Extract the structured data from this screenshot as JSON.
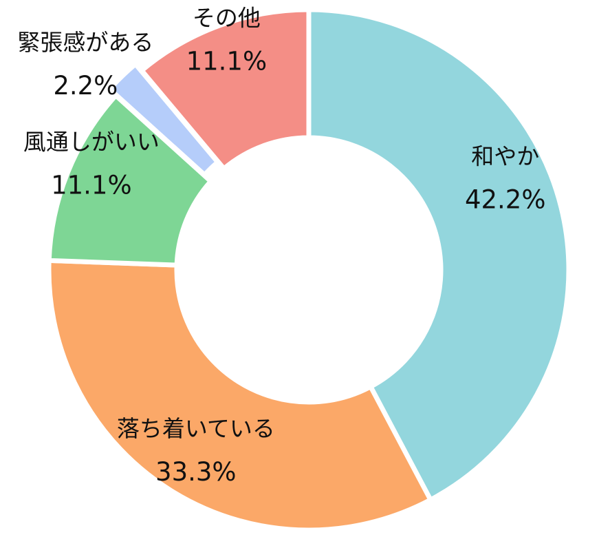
{
  "chart_data": {
    "type": "pie",
    "variant": "donut",
    "title": "",
    "legend": "none",
    "slices": [
      {
        "label": "和やか",
        "value": 42.2,
        "value_label": "42.2%",
        "color": "#93d6dd"
      },
      {
        "label": "落ち着いている",
        "value": 33.3,
        "value_label": "33.3%",
        "color": "#fba868"
      },
      {
        "label": "風通しがいい",
        "value": 11.1,
        "value_label": "11.1%",
        "color": "#7ed695"
      },
      {
        "label": "緊張感がある",
        "value": 2.2,
        "value_label": "2.2%",
        "color": "#b5cdfa"
      },
      {
        "label": "その他",
        "value": 11.1,
        "value_label": "11.1%",
        "color": "#f48e86"
      }
    ]
  }
}
